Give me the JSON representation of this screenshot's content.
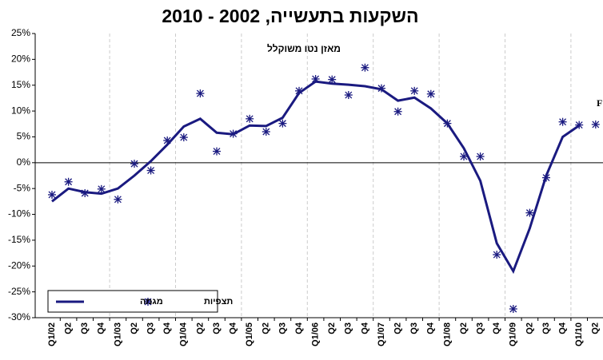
{
  "chart_data": {
    "type": "line",
    "title": "השקעות בתעשייה, 2002 - 2010",
    "subtitle": "מאזן נטו משוקלל",
    "annotation": "F",
    "categories": [
      "Q1/02",
      "Q2",
      "Q3",
      "Q4",
      "Q1/03",
      "Q2",
      "Q3",
      "Q4",
      "Q1/04",
      "Q2",
      "Q3",
      "Q4",
      "Q1/05",
      "Q2",
      "Q3",
      "Q4",
      "Q1/06",
      "Q2",
      "Q3",
      "Q4",
      "Q1/07",
      "Q2",
      "Q3",
      "Q4",
      "Q1/08",
      "Q2",
      "Q3",
      "Q4",
      "Q1/09",
      "Q2",
      "Q3",
      "Q4",
      "Q1/10",
      "Q2"
    ],
    "series": [
      {
        "name": "תצפיות",
        "color": "#1a1a80",
        "marker": "asterisk",
        "values": [
          -6.2,
          -3.7,
          -5.9,
          -5.1,
          -7.1,
          -0.2,
          -1.5,
          4.3,
          4.9,
          13.4,
          2.2,
          5.6,
          8.5,
          6.0,
          7.6,
          13.9,
          16.2,
          16.1,
          13.1,
          18.4,
          14.4,
          9.9,
          13.9,
          13.3,
          7.6,
          1.2,
          1.2,
          -17.8,
          -28.3,
          -9.7,
          -2.9,
          7.9,
          7.3,
          7.4
        ]
      },
      {
        "name": "מגמה",
        "color": "#1a1a80",
        "marker": "line",
        "values": [
          -7.5,
          -5,
          -5.7,
          -6,
          -5,
          -2.5,
          0.3,
          3.5,
          7,
          8.5,
          5.8,
          5.5,
          7.2,
          7.1,
          8.7,
          13.5,
          15.7,
          15.3,
          15.1,
          14.8,
          14.2,
          12,
          12.6,
          10.5,
          7.6,
          2.8,
          -3.5,
          -15.6,
          -21,
          -12.7,
          -2.5,
          5,
          7.2,
          null
        ]
      }
    ],
    "ylim": [
      -30,
      25
    ],
    "yticks": [
      {
        "value": -30,
        "label": "-30%"
      },
      {
        "value": -25,
        "label": "-25%"
      },
      {
        "value": -20,
        "label": "-20%"
      },
      {
        "value": -15,
        "label": "-15%"
      },
      {
        "value": -10,
        "label": "-10%"
      },
      {
        "value": -5,
        "label": "-5%"
      },
      {
        "value": 0,
        "label": "0%"
      },
      {
        "value": 5,
        "label": "5%"
      },
      {
        "value": 10,
        "label": "10%"
      },
      {
        "value": 15,
        "label": "15%"
      },
      {
        "value": 20,
        "label": "20%"
      },
      {
        "value": 25,
        "label": "25%"
      }
    ]
  }
}
